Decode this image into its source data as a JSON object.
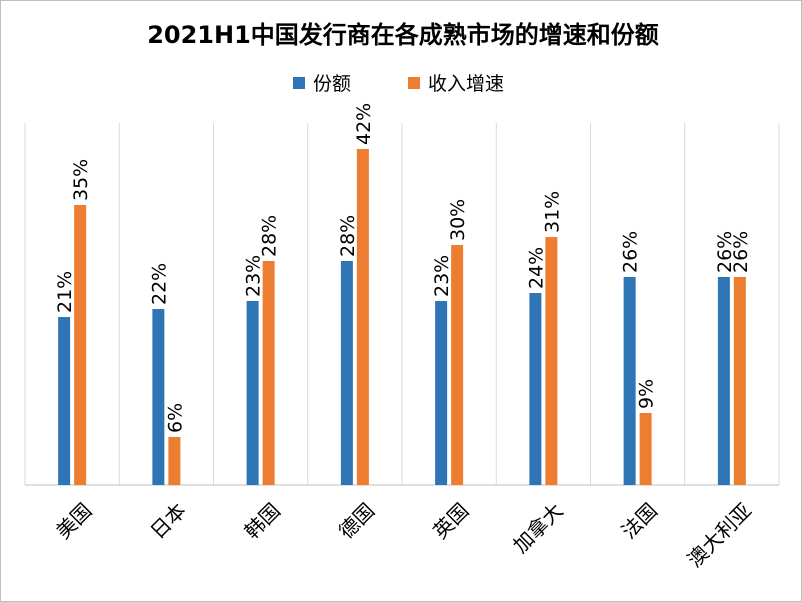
{
  "chart_data": {
    "type": "bar",
    "title": "2021H1中国发行商在各成熟市场的增速和份额",
    "categories": [
      "美国",
      "日本",
      "韩国",
      "德国",
      "英国",
      "加拿大",
      "法国",
      "澳大利亚"
    ],
    "series": [
      {
        "name": "份额",
        "color": "#2e75b6",
        "values": [
          21,
          22,
          23,
          28,
          23,
          24,
          26,
          26
        ],
        "labels": [
          "21%",
          "22%",
          "23%",
          "28%",
          "23%",
          "24%",
          "26%",
          "26%"
        ]
      },
      {
        "name": "收入增速",
        "color": "#ed7d31",
        "values": [
          35,
          6,
          28,
          42,
          30,
          31,
          9,
          26
        ],
        "labels": [
          "35%",
          "6%",
          "28%",
          "42%",
          "30%",
          "31%",
          "9%",
          "26%"
        ]
      }
    ],
    "ylim": [
      0,
      42
    ],
    "unit": "%",
    "grid": false,
    "legend": "top-center",
    "xlabel": "",
    "ylabel": ""
  }
}
